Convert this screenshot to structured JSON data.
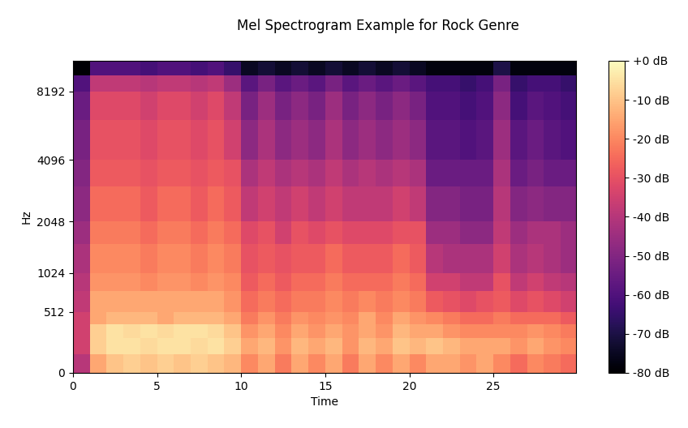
{
  "chart_data": {
    "type": "heatmap",
    "title": "Mel Spectrogram Example for Rock Genre",
    "x_label": "Time",
    "y_label": "Hz",
    "xlim": [
      0,
      29.9
    ],
    "xticks": [
      0,
      5,
      10,
      15,
      20,
      25
    ],
    "ylim": [
      0,
      11025
    ],
    "yticks": [
      0,
      512,
      1024,
      2048,
      4096,
      8192
    ],
    "time_edges": [
      0,
      1,
      2,
      3,
      4,
      5,
      6,
      7,
      8,
      9,
      10,
      11,
      12,
      13,
      14,
      15,
      16,
      17,
      18,
      19,
      20,
      21,
      22,
      23,
      24,
      25,
      26,
      27,
      28,
      29,
      29.9
    ],
    "freq_edges": [
      0,
      128,
      256,
      384,
      512,
      768,
      1024,
      1536,
      2048,
      3072,
      4096,
      6144,
      8192,
      9600,
      11025
    ],
    "cells": [
      [
        -40,
        -15,
        -10,
        -8,
        -10,
        -8,
        -10,
        -8,
        -10,
        -12,
        -20,
        -15,
        -22,
        -15,
        -20,
        -15,
        -22,
        -15,
        -20,
        -15,
        -20,
        -15,
        -15,
        -18,
        -15,
        -20,
        -25,
        -20,
        -22,
        -25
      ],
      [
        -35,
        -8,
        -5,
        -5,
        -6,
        -5,
        -5,
        -6,
        -5,
        -8,
        -15,
        -12,
        -18,
        -12,
        -15,
        -12,
        -18,
        -12,
        -15,
        -10,
        -12,
        -10,
        -12,
        -15,
        -15,
        -15,
        -18,
        -15,
        -18,
        -20
      ],
      [
        -35,
        -8,
        -5,
        -6,
        -5,
        -6,
        -5,
        -5,
        -6,
        -10,
        -18,
        -15,
        -20,
        -15,
        -18,
        -15,
        -18,
        -15,
        -18,
        -12,
        -15,
        -15,
        -18,
        -20,
        -20,
        -20,
        -20,
        -18,
        -20,
        -22
      ],
      [
        -35,
        -15,
        -12,
        -12,
        -12,
        -15,
        -12,
        -12,
        -12,
        -15,
        -22,
        -18,
        -22,
        -18,
        -20,
        -18,
        -20,
        -15,
        -20,
        -15,
        -18,
        -20,
        -22,
        -25,
        -25,
        -22,
        -25,
        -25,
        -25,
        -28
      ],
      [
        -38,
        -15,
        -15,
        -15,
        -15,
        -15,
        -15,
        -15,
        -15,
        -18,
        -25,
        -22,
        -25,
        -22,
        -22,
        -20,
        -22,
        -20,
        -22,
        -20,
        -22,
        -28,
        -30,
        -32,
        -30,
        -28,
        -32,
        -30,
        -32,
        -35
      ],
      [
        -40,
        -18,
        -18,
        -18,
        -20,
        -18,
        -18,
        -20,
        -18,
        -20,
        -28,
        -25,
        -28,
        -25,
        -25,
        -22,
        -25,
        -25,
        -25,
        -22,
        -25,
        -35,
        -35,
        -38,
        -38,
        -30,
        -38,
        -35,
        -38,
        -40
      ],
      [
        -42,
        -20,
        -20,
        -20,
        -22,
        -20,
        -20,
        -22,
        -20,
        -22,
        -30,
        -28,
        -30,
        -28,
        -28,
        -25,
        -28,
        -28,
        -28,
        -25,
        -28,
        -40,
        -42,
        -42,
        -42,
        -35,
        -42,
        -40,
        -42,
        -45
      ],
      [
        -45,
        -22,
        -22,
        -22,
        -25,
        -22,
        -22,
        -25,
        -22,
        -25,
        -32,
        -30,
        -35,
        -30,
        -32,
        -30,
        -32,
        -32,
        -32,
        -30,
        -30,
        -45,
        -45,
        -48,
        -48,
        -38,
        -45,
        -42,
        -42,
        -45
      ],
      [
        -48,
        -25,
        -25,
        -25,
        -28,
        -25,
        -25,
        -28,
        -25,
        -28,
        -38,
        -35,
        -38,
        -35,
        -38,
        -35,
        -38,
        -38,
        -38,
        -35,
        -38,
        -50,
        -50,
        -52,
        -52,
        -40,
        -50,
        -48,
        -50,
        -50
      ],
      [
        -50,
        -28,
        -28,
        -28,
        -30,
        -28,
        -28,
        -30,
        -28,
        -30,
        -42,
        -38,
        -42,
        -40,
        -42,
        -38,
        -42,
        -40,
        -42,
        -40,
        -42,
        -55,
        -55,
        -55,
        -55,
        -42,
        -55,
        -52,
        -55,
        -55
      ],
      [
        -52,
        -30,
        -30,
        -30,
        -32,
        -30,
        -30,
        -32,
        -30,
        -35,
        -48,
        -42,
        -48,
        -45,
        -48,
        -42,
        -48,
        -45,
        -48,
        -45,
        -48,
        -58,
        -58,
        -60,
        -58,
        -45,
        -58,
        -55,
        -58,
        -60
      ],
      [
        -55,
        -32,
        -32,
        -32,
        -35,
        -32,
        -32,
        -35,
        -32,
        -38,
        -52,
        -45,
        -52,
        -48,
        -52,
        -45,
        -52,
        -48,
        -52,
        -48,
        -52,
        -60,
        -60,
        -62,
        -60,
        -48,
        -62,
        -58,
        -60,
        -62
      ],
      [
        -60,
        -38,
        -38,
        -38,
        -40,
        -38,
        -38,
        -40,
        -38,
        -45,
        -58,
        -52,
        -58,
        -55,
        -58,
        -52,
        -58,
        -55,
        -58,
        -55,
        -58,
        -62,
        -62,
        -65,
        -62,
        -52,
        -65,
        -62,
        -62,
        -65
      ],
      [
        -80,
        -60,
        -60,
        -60,
        -62,
        -60,
        -60,
        -62,
        -60,
        -65,
        -75,
        -72,
        -75,
        -72,
        -75,
        -72,
        -75,
        -72,
        -75,
        -72,
        -75,
        -78,
        -78,
        -78,
        -78,
        -70,
        -78,
        -78,
        -78,
        -78
      ]
    ],
    "color_range": [
      -80,
      0
    ],
    "color_ticks": [
      {
        "value": 0,
        "label": "+0 dB"
      },
      {
        "value": -10,
        "label": "-10 dB"
      },
      {
        "value": -20,
        "label": "-20 dB"
      },
      {
        "value": -30,
        "label": "-30 dB"
      },
      {
        "value": -40,
        "label": "-40 dB"
      },
      {
        "value": -50,
        "label": "-50 dB"
      },
      {
        "value": -60,
        "label": "-60 dB"
      },
      {
        "value": -70,
        "label": "-70 dB"
      },
      {
        "value": -80,
        "label": "-80 dB"
      }
    ]
  }
}
